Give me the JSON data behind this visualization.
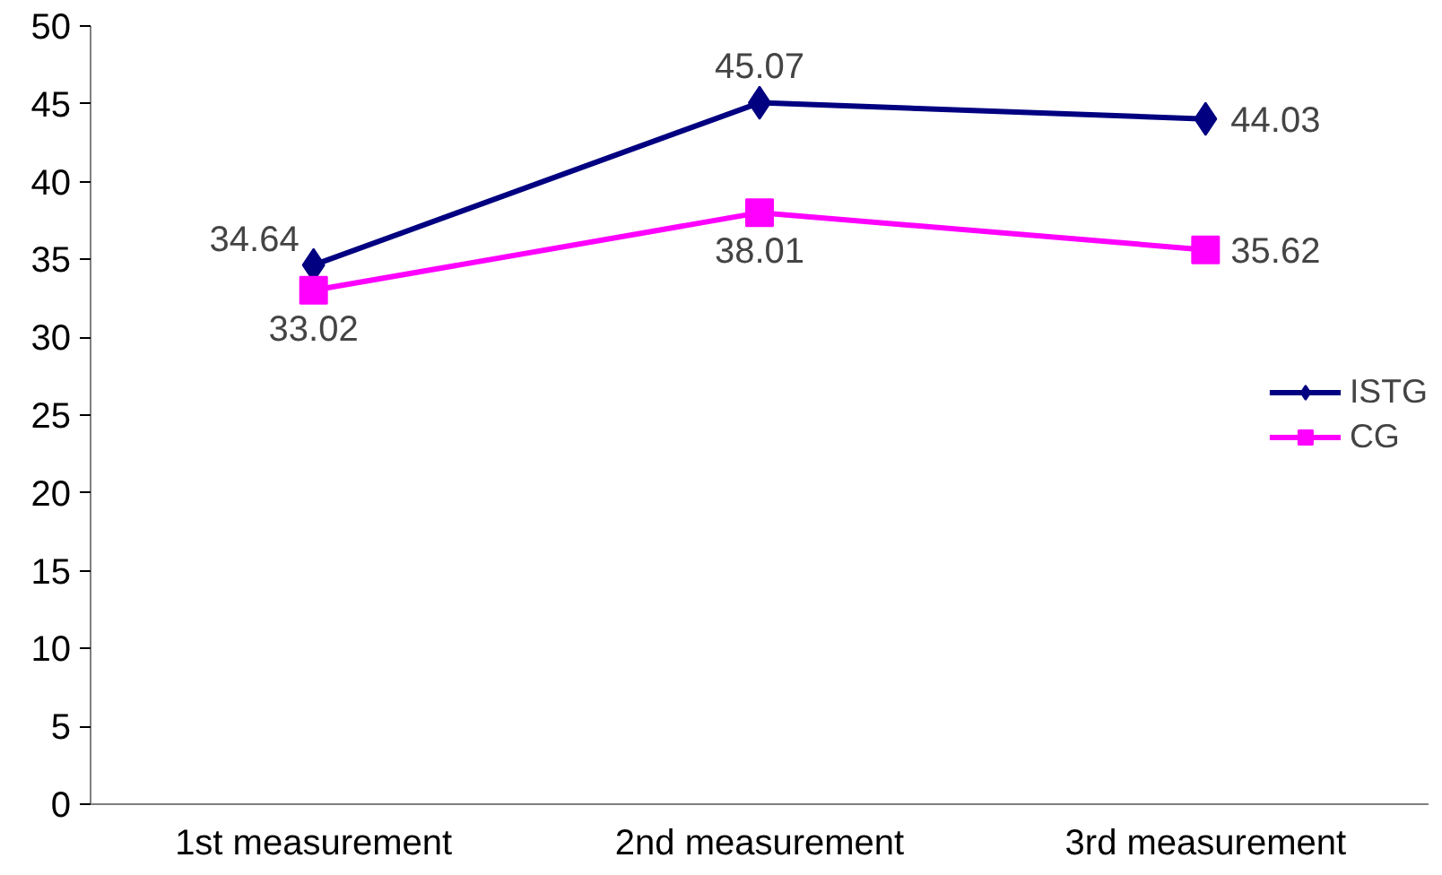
{
  "chart_data": {
    "type": "line",
    "categories": [
      "1st measurement",
      "2nd measurement",
      "3rd measurement"
    ],
    "series": [
      {
        "name": "ISTG",
        "color": "#000080",
        "marker": "diamond",
        "values": [
          34.64,
          45.07,
          44.03
        ]
      },
      {
        "name": "CG",
        "color": "#ff00ff",
        "marker": "square",
        "values": [
          33.02,
          38.01,
          35.62
        ]
      }
    ],
    "ylim": [
      0,
      50
    ],
    "yticks": [
      0,
      5,
      10,
      15,
      20,
      25,
      30,
      35,
      40,
      45,
      50
    ],
    "grid": false,
    "legend": "right",
    "data_labels": true
  }
}
